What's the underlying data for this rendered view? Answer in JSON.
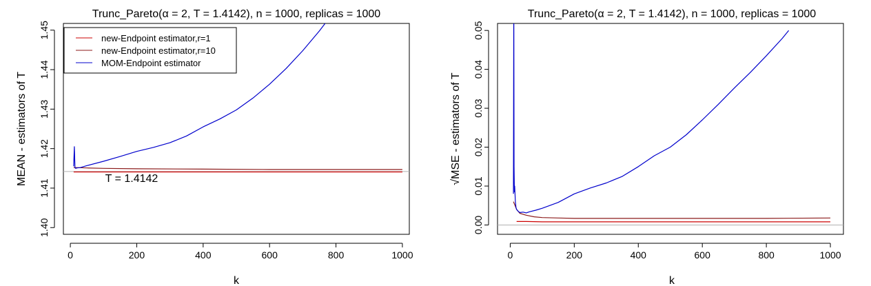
{
  "chart_data": [
    {
      "type": "line",
      "title": "Trunc_Pareto(α = 2, T = 1.4142), n = 1000, replicas = 1000",
      "xlabel": "k",
      "ylabel": "MEAN - estimators of T",
      "xlim": [
        1,
        1000
      ],
      "ylim": [
        1.4,
        1.45
      ],
      "xticks": [
        "0",
        "200",
        "400",
        "600",
        "800",
        "1000"
      ],
      "yticks": [
        "1.40",
        "1.41",
        "1.42",
        "1.43",
        "1.44",
        "1.45"
      ],
      "legend": [
        "new-Endpoint estimator,r=1",
        "new-Endpoint estimator,r=10",
        "MOM-Endpoint estimator"
      ],
      "legend_position": "top-left",
      "reference_line": {
        "value": 1.4142,
        "label": "T = 1.4142",
        "color": "#b0b0b0"
      },
      "series": [
        {
          "name": "new-Endpoint estimator,r=1",
          "color": "#cc0000",
          "x": [
            10,
            20,
            50,
            100,
            200,
            400,
            600,
            800,
            1000
          ],
          "y": [
            1.4141,
            1.4141,
            1.4141,
            1.4141,
            1.4141,
            1.4141,
            1.4141,
            1.4141,
            1.4141
          ]
        },
        {
          "name": "new-Endpoint estimator,r=10",
          "color": "#8b1a1a",
          "x": [
            10,
            20,
            50,
            100,
            200,
            400,
            600,
            800,
            1000
          ],
          "y": [
            1.4152,
            1.4152,
            1.4151,
            1.415,
            1.4149,
            1.4148,
            1.4147,
            1.4147,
            1.4147
          ]
        },
        {
          "name": "MOM-Endpoint estimator",
          "color": "#0000cc",
          "x": [
            10,
            12,
            14,
            16,
            20,
            30,
            50,
            100,
            150,
            200,
            250,
            300,
            350,
            400,
            450,
            500,
            550,
            600,
            650,
            700,
            750,
            770
          ],
          "y": [
            1.4155,
            1.4205,
            1.4152,
            1.415,
            1.4151,
            1.4152,
            1.4157,
            1.4168,
            1.418,
            1.4193,
            1.4203,
            1.4215,
            1.4232,
            1.4255,
            1.4275,
            1.4298,
            1.4328,
            1.4363,
            1.4403,
            1.4448,
            1.4498,
            1.452
          ]
        }
      ]
    },
    {
      "type": "line",
      "title": "Trunc_Pareto(α = 2, T = 1.4142), n = 1000, replicas = 1000",
      "xlabel": "k",
      "ylabel": "MSE - estimators of T",
      "ylabel_prefix": "√",
      "xlim": [
        1,
        1000
      ],
      "ylim": [
        0,
        0.05
      ],
      "xticks": [
        "0",
        "200",
        "400",
        "600",
        "800",
        "1000"
      ],
      "yticks": [
        "0.00",
        "0.01",
        "0.02",
        "0.03",
        "0.04",
        "0.05"
      ],
      "reference_line": {
        "value": 0,
        "color": "#b0b0b0"
      },
      "series": [
        {
          "name": "new-Endpoint estimator,r=1",
          "color": "#cc0000",
          "x": [
            20,
            50,
            100,
            200,
            400,
            600,
            800,
            1000
          ],
          "y": [
            0.0009,
            0.0009,
            0.0008,
            0.0008,
            0.0008,
            0.0008,
            0.0008,
            0.0008
          ]
        },
        {
          "name": "new-Endpoint estimator,r=10",
          "color": "#8b1a1a",
          "x": [
            10,
            15,
            20,
            30,
            50,
            75,
            100,
            150,
            200,
            400,
            600,
            800,
            1000
          ],
          "y": [
            0.006,
            0.005,
            0.004,
            0.003,
            0.0025,
            0.0021,
            0.0019,
            0.0018,
            0.0017,
            0.0017,
            0.0017,
            0.0017,
            0.0018
          ]
        },
        {
          "name": "MOM-Endpoint estimator",
          "color": "#0000cc",
          "x": [
            10,
            11,
            12,
            13,
            14,
            16,
            18,
            20,
            25,
            30,
            40,
            50,
            60,
            80,
            100,
            150,
            200,
            250,
            300,
            350,
            400,
            450,
            500,
            550,
            600,
            650,
            700,
            750,
            800,
            850,
            870
          ],
          "y": [
            0.008,
            0.06,
            0.015,
            0.0085,
            0.01,
            0.006,
            0.0045,
            0.004,
            0.0035,
            0.0032,
            0.0033,
            0.0031,
            0.0034,
            0.0038,
            0.0043,
            0.0058,
            0.008,
            0.0095,
            0.0108,
            0.0125,
            0.015,
            0.0178,
            0.02,
            0.0232,
            0.027,
            0.031,
            0.0352,
            0.0392,
            0.0435,
            0.048,
            0.05
          ]
        }
      ]
    }
  ]
}
